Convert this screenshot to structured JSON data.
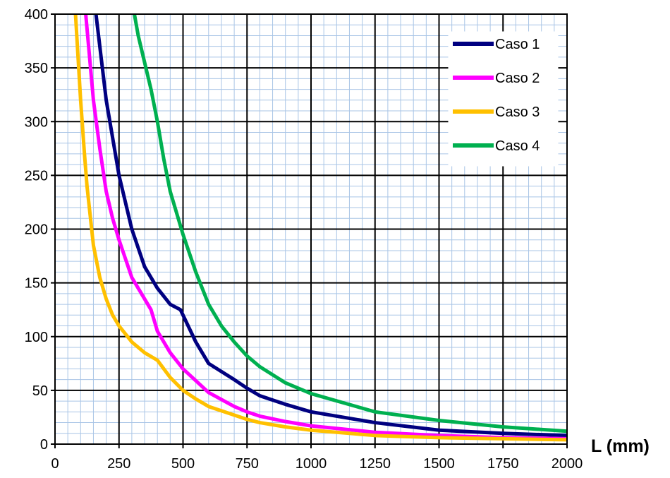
{
  "chart_data": {
    "type": "line",
    "title": "",
    "xlabel": "L (mm)",
    "ylabel": "",
    "xlim": [
      0,
      2000
    ],
    "ylim": [
      0,
      400
    ],
    "x_ticks": [
      0,
      250,
      500,
      750,
      1000,
      1250,
      1500,
      1750,
      2000
    ],
    "y_ticks": [
      0,
      50,
      100,
      150,
      200,
      250,
      300,
      350,
      400
    ],
    "grid": true,
    "legend_position": "top-right",
    "series": [
      {
        "name": "Caso 1",
        "color": "#000080",
        "points": [
          [
            160,
            400
          ],
          [
            180,
            360
          ],
          [
            200,
            320
          ],
          [
            225,
            285
          ],
          [
            250,
            250
          ],
          [
            275,
            225
          ],
          [
            300,
            200
          ],
          [
            350,
            165
          ],
          [
            400,
            145
          ],
          [
            450,
            130
          ],
          [
            490,
            125
          ],
          [
            500,
            120
          ],
          [
            550,
            95
          ],
          [
            600,
            75
          ],
          [
            700,
            60
          ],
          [
            750,
            52
          ],
          [
            800,
            45
          ],
          [
            900,
            37
          ],
          [
            1000,
            30
          ],
          [
            1250,
            20
          ],
          [
            1500,
            13
          ],
          [
            1750,
            10
          ],
          [
            2000,
            8
          ]
        ]
      },
      {
        "name": "Caso 2",
        "color": "#ff00ff",
        "points": [
          [
            120,
            400
          ],
          [
            135,
            360
          ],
          [
            150,
            320
          ],
          [
            175,
            275
          ],
          [
            200,
            235
          ],
          [
            225,
            210
          ],
          [
            250,
            190
          ],
          [
            300,
            155
          ],
          [
            350,
            135
          ],
          [
            375,
            125
          ],
          [
            400,
            105
          ],
          [
            450,
            85
          ],
          [
            500,
            70
          ],
          [
            600,
            48
          ],
          [
            700,
            35
          ],
          [
            750,
            30
          ],
          [
            800,
            26
          ],
          [
            900,
            21
          ],
          [
            1000,
            17
          ],
          [
            1250,
            11
          ],
          [
            1500,
            8
          ],
          [
            1750,
            6
          ],
          [
            2000,
            5
          ]
        ]
      },
      {
        "name": "Caso 3",
        "color": "#ffc000",
        "points": [
          [
            80,
            400
          ],
          [
            90,
            360
          ],
          [
            100,
            320
          ],
          [
            115,
            270
          ],
          [
            125,
            240
          ],
          [
            150,
            185
          ],
          [
            175,
            155
          ],
          [
            200,
            135
          ],
          [
            225,
            120
          ],
          [
            250,
            110
          ],
          [
            300,
            95
          ],
          [
            350,
            85
          ],
          [
            400,
            78
          ],
          [
            450,
            62
          ],
          [
            500,
            50
          ],
          [
            550,
            42
          ],
          [
            600,
            35
          ],
          [
            700,
            27
          ],
          [
            750,
            23
          ],
          [
            800,
            20
          ],
          [
            900,
            16
          ],
          [
            1000,
            13
          ],
          [
            1250,
            8
          ],
          [
            1500,
            6
          ],
          [
            1750,
            5
          ],
          [
            2000,
            4
          ]
        ]
      },
      {
        "name": "Caso 4",
        "color": "#00b050",
        "points": [
          [
            310,
            400
          ],
          [
            325,
            380
          ],
          [
            350,
            355
          ],
          [
            375,
            330
          ],
          [
            400,
            300
          ],
          [
            425,
            265
          ],
          [
            450,
            235
          ],
          [
            500,
            195
          ],
          [
            550,
            160
          ],
          [
            600,
            130
          ],
          [
            650,
            110
          ],
          [
            700,
            95
          ],
          [
            750,
            82
          ],
          [
            800,
            72
          ],
          [
            900,
            57
          ],
          [
            1000,
            47
          ],
          [
            1250,
            30
          ],
          [
            1500,
            22
          ],
          [
            1750,
            16
          ],
          [
            2000,
            12
          ]
        ]
      }
    ]
  }
}
